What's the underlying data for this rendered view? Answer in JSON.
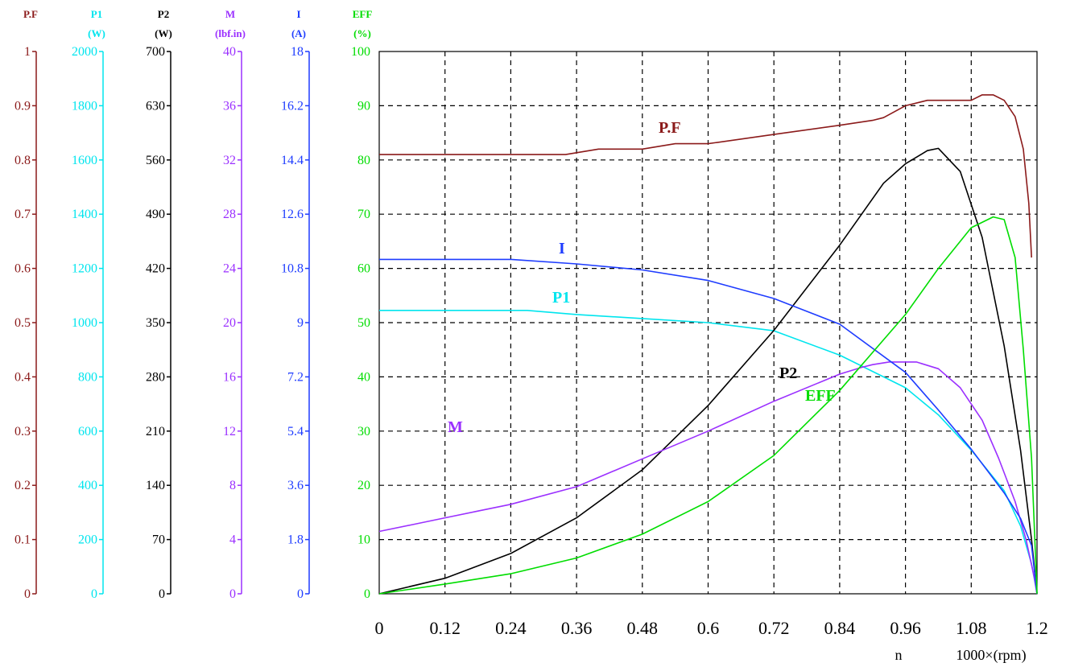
{
  "chart_data": {
    "type": "line",
    "grid": true,
    "x": {
      "label_symbol": "n",
      "label_unit": "1000×(rpm)",
      "range": [
        0,
        1.2
      ],
      "ticks": [
        "0",
        "0.12",
        "0.24",
        "0.36",
        "0.48",
        "0.6",
        "0.72",
        "0.84",
        "0.96",
        "1.08",
        "1.2"
      ]
    },
    "axes": [
      {
        "id": "pf",
        "title": "P.F",
        "unit": "",
        "color": "#8b1a1a",
        "range": [
          0,
          1
        ],
        "ticks": [
          "0",
          "0.1",
          "0.2",
          "0.3",
          "0.4",
          "0.5",
          "0.6",
          "0.7",
          "0.8",
          "0.9",
          "1"
        ]
      },
      {
        "id": "p1",
        "title": "P1",
        "unit": "(W)",
        "color": "#00e5ee",
        "range": [
          0,
          2000
        ],
        "ticks": [
          "0",
          "200",
          "400",
          "600",
          "800",
          "1000",
          "1200",
          "1400",
          "1600",
          "1800",
          "2000"
        ]
      },
      {
        "id": "p2",
        "title": "P2",
        "unit": "(W)",
        "color": "#000000",
        "range": [
          0,
          700
        ],
        "ticks": [
          "0",
          "70",
          "140",
          "210",
          "280",
          "350",
          "420",
          "490",
          "560",
          "630",
          "700"
        ]
      },
      {
        "id": "m",
        "title": "M",
        "unit": "(lbf.in)",
        "color": "#9b30ff",
        "range": [
          0,
          40
        ],
        "ticks": [
          "0",
          "4",
          "8",
          "12",
          "16",
          "20",
          "24",
          "28",
          "32",
          "36",
          "40"
        ]
      },
      {
        "id": "i",
        "title": "I",
        "unit": "(A)",
        "color": "#1e3cff",
        "range": [
          0,
          18
        ],
        "ticks": [
          "0",
          "1.8",
          "3.6",
          "5.4",
          "7.2",
          "9",
          "10.8",
          "12.6",
          "14.4",
          "16.2",
          "18"
        ]
      },
      {
        "id": "eff",
        "title": "EFF",
        "unit": "(%)",
        "color": "#00dd00",
        "range": [
          0,
          100
        ],
        "ticks": [
          "0",
          "10",
          "20",
          "30",
          "40",
          "50",
          "60",
          "70",
          "80",
          "90",
          "100"
        ]
      }
    ],
    "series": [
      {
        "name": "P.F",
        "axis": "pf",
        "color": "#8b1a1a",
        "points": [
          [
            0,
            0.81
          ],
          [
            0.12,
            0.81
          ],
          [
            0.24,
            0.81
          ],
          [
            0.34,
            0.81
          ],
          [
            0.4,
            0.82
          ],
          [
            0.48,
            0.82
          ],
          [
            0.54,
            0.83
          ],
          [
            0.6,
            0.83
          ],
          [
            0.72,
            0.847
          ],
          [
            0.84,
            0.864
          ],
          [
            0.9,
            0.873
          ],
          [
            0.92,
            0.878
          ],
          [
            0.96,
            0.9
          ],
          [
            1.0,
            0.91
          ],
          [
            1.04,
            0.91
          ],
          [
            1.08,
            0.91
          ],
          [
            1.1,
            0.92
          ],
          [
            1.12,
            0.92
          ],
          [
            1.14,
            0.91
          ],
          [
            1.16,
            0.88
          ],
          [
            1.175,
            0.82
          ],
          [
            1.185,
            0.72
          ],
          [
            1.19,
            0.62
          ]
        ]
      },
      {
        "name": "P1",
        "axis": "p1",
        "color": "#00e5ee",
        "points": [
          [
            0,
            1045
          ],
          [
            0.12,
            1045
          ],
          [
            0.27,
            1045
          ],
          [
            0.36,
            1030
          ],
          [
            0.48,
            1015
          ],
          [
            0.6,
            1000
          ],
          [
            0.72,
            970
          ],
          [
            0.84,
            880
          ],
          [
            0.96,
            760
          ],
          [
            1.02,
            660
          ],
          [
            1.08,
            530
          ],
          [
            1.14,
            380
          ],
          [
            1.17,
            250
          ],
          [
            1.19,
            110
          ],
          [
            1.2,
            0
          ]
        ]
      },
      {
        "name": "P2",
        "axis": "p2",
        "color": "#000000",
        "points": [
          [
            0,
            0
          ],
          [
            0.12,
            20
          ],
          [
            0.24,
            52
          ],
          [
            0.36,
            98
          ],
          [
            0.48,
            160
          ],
          [
            0.6,
            243
          ],
          [
            0.72,
            340
          ],
          [
            0.84,
            450
          ],
          [
            0.92,
            530
          ],
          [
            0.96,
            555
          ],
          [
            1.0,
            572
          ],
          [
            1.02,
            575
          ],
          [
            1.06,
            545
          ],
          [
            1.1,
            460
          ],
          [
            1.14,
            320
          ],
          [
            1.17,
            185
          ],
          [
            1.19,
            70
          ],
          [
            1.2,
            0
          ]
        ]
      },
      {
        "name": "M",
        "axis": "m",
        "color": "#9b30ff",
        "points": [
          [
            0,
            4.6
          ],
          [
            0.06,
            5.1
          ],
          [
            0.12,
            5.6
          ],
          [
            0.18,
            6.1
          ],
          [
            0.24,
            6.6
          ],
          [
            0.36,
            7.9
          ],
          [
            0.48,
            9.95
          ],
          [
            0.6,
            12
          ],
          [
            0.72,
            14.2
          ],
          [
            0.84,
            16.2
          ],
          [
            0.88,
            16.7
          ],
          [
            0.9,
            16.9
          ],
          [
            0.93,
            17.1
          ],
          [
            0.98,
            17.1
          ],
          [
            1.02,
            16.6
          ],
          [
            1.06,
            15.2
          ],
          [
            1.1,
            12.8
          ],
          [
            1.13,
            10
          ],
          [
            1.16,
            6.8
          ],
          [
            1.18,
            4
          ],
          [
            1.195,
            1.2
          ],
          [
            1.2,
            0
          ]
        ]
      },
      {
        "name": "I",
        "axis": "i",
        "color": "#1e3cff",
        "points": [
          [
            0,
            11.1
          ],
          [
            0.12,
            11.1
          ],
          [
            0.24,
            11.1
          ],
          [
            0.36,
            10.95
          ],
          [
            0.48,
            10.75
          ],
          [
            0.6,
            10.4
          ],
          [
            0.72,
            9.8
          ],
          [
            0.84,
            8.95
          ],
          [
            0.96,
            7.35
          ],
          [
            1.02,
            6.1
          ],
          [
            1.08,
            4.8
          ],
          [
            1.14,
            3.35
          ],
          [
            1.17,
            2.5
          ],
          [
            1.19,
            1.6
          ],
          [
            1.2,
            0
          ]
        ]
      },
      {
        "name": "EFF",
        "axis": "eff",
        "color": "#00dd00",
        "points": [
          [
            0,
            0
          ],
          [
            0.12,
            1.8
          ],
          [
            0.24,
            3.7
          ],
          [
            0.36,
            6.6
          ],
          [
            0.48,
            11
          ],
          [
            0.6,
            17
          ],
          [
            0.72,
            25.5
          ],
          [
            0.84,
            37.5
          ],
          [
            0.96,
            51.5
          ],
          [
            1.02,
            60
          ],
          [
            1.08,
            67.5
          ],
          [
            1.12,
            69.5
          ],
          [
            1.14,
            69
          ],
          [
            1.16,
            62
          ],
          [
            1.175,
            45
          ],
          [
            1.19,
            25
          ],
          [
            1.2,
            0
          ]
        ]
      }
    ],
    "annotations": [
      {
        "text": "P.F",
        "color": "#8b1a1a"
      },
      {
        "text": "I",
        "color": "#1e3cff"
      },
      {
        "text": "P1",
        "color": "#00e5ee"
      },
      {
        "text": "M",
        "color": "#9b30ff"
      },
      {
        "text": "P2",
        "color": "#000000"
      },
      {
        "text": "EFF",
        "color": "#00dd00"
      }
    ]
  }
}
